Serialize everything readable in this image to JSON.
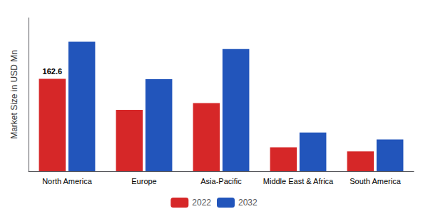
{
  "chart_data": {
    "type": "bar",
    "ylabel": "Market Size in USD Mn",
    "categories": [
      "North America",
      "Europe",
      "Asia-Pacific",
      "Middle East & Africa",
      "South America"
    ],
    "series": [
      {
        "name": "2022",
        "color": "#d62728",
        "values": [
          162.6,
          108,
          120,
          42,
          35
        ]
      },
      {
        "name": "2032",
        "color": "#2255bb",
        "values": [
          228,
          162,
          215,
          68,
          56
        ]
      }
    ],
    "annotations": [
      {
        "text": "162.6",
        "x": "North America",
        "series": "2022"
      }
    ],
    "ylim": [
      0,
      270
    ],
    "yticks": [],
    "tick_labels": "x",
    "grid": false,
    "legend": "bottom"
  }
}
